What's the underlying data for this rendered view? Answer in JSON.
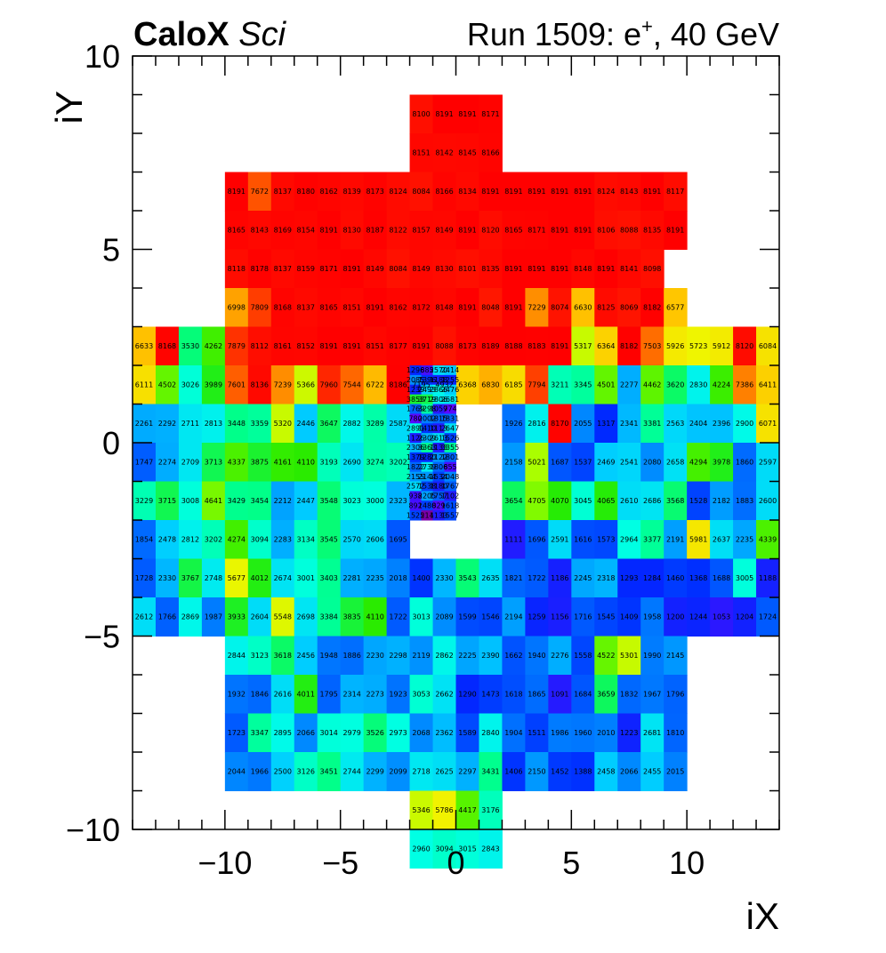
{
  "header": {
    "brand": "CaloX",
    "brand_sub": "Sci",
    "run_prefix": "Run 1509: e",
    "run_sup": "+",
    "run_suffix": ", 40 GeV"
  },
  "chart_data": {
    "type": "heatmap",
    "xlabel": "iX",
    "ylabel": "iY",
    "xlim": [
      -14,
      14
    ],
    "ylim": [
      -10,
      10
    ],
    "xticks": [
      -10,
      -5,
      0,
      5,
      10
    ],
    "yticks": [
      -10,
      -5,
      0,
      5,
      10
    ],
    "tick_labels_x": [
      "−10",
      "−5",
      "0",
      "5",
      "10"
    ],
    "tick_labels_y": [
      "−10",
      "−5",
      "0",
      "5",
      "10"
    ],
    "z_max": 8191,
    "rows": [
      {
        "y0": 8,
        "h": 1,
        "x0": -2,
        "w": 1,
        "values": [
          8100,
          8191,
          8191,
          8171
        ]
      },
      {
        "y0": 7,
        "h": 1,
        "x0": -2,
        "w": 1,
        "values": [
          8151,
          8142,
          8145,
          8166
        ]
      },
      {
        "y0": 6,
        "h": 1,
        "x0": -10,
        "w": 1,
        "values": [
          8191,
          7672,
          8137,
          8180,
          8162,
          8139,
          8173,
          8124,
          8084,
          8166,
          8134,
          8191,
          8191,
          8191,
          8191,
          8191,
          8124,
          8143,
          8191,
          8117
        ]
      },
      {
        "y0": 5,
        "h": 1,
        "x0": -10,
        "w": 1,
        "values": [
          8165,
          8143,
          8169,
          8154,
          8191,
          8130,
          8187,
          8122,
          8157,
          8149,
          8191,
          8120,
          8165,
          8171,
          8191,
          8191,
          8106,
          8088,
          8135,
          8191
        ]
      },
      {
        "y0": 4,
        "h": 1,
        "x0": -10,
        "w": 1,
        "values": [
          8118,
          8178,
          8137,
          8159,
          8171,
          8191,
          8149,
          8084,
          8149,
          8130,
          8101,
          8135,
          8191,
          8191,
          8191,
          8148,
          8191,
          8141,
          8098
        ]
      },
      {
        "y0": 3,
        "h": 1,
        "x0": -10,
        "w": 1,
        "values": [
          6998,
          7809,
          8168,
          8137,
          8165,
          8151,
          8191,
          8162,
          8172,
          8148,
          8191,
          8048,
          8191,
          7229,
          8074,
          6630,
          8125,
          8069,
          8182,
          6577
        ]
      },
      {
        "y0": 2,
        "h": 1,
        "x0": -14,
        "w": 1,
        "values": [
          6633,
          8168,
          3530,
          4262,
          7879,
          8112,
          8161,
          8152,
          8191,
          8191,
          8151,
          8177,
          8191,
          8088,
          8173,
          8189,
          8188,
          8183,
          8191,
          5317,
          6364,
          8182,
          7503,
          5926,
          5723,
          5912,
          8120,
          6084
        ]
      },
      {
        "y0": 1,
        "h": 1,
        "x0": -14,
        "w": 1,
        "values": [
          6111,
          4502,
          3026,
          3989,
          7601,
          8136,
          7239,
          5366,
          7960,
          7544,
          6722,
          8186,
          7195,
          4932,
          6368,
          6830,
          6185,
          7794,
          3211,
          3345,
          4501,
          2277,
          4462,
          3620,
          2830,
          4224,
          7386,
          6411
        ]
      },
      {
        "y0": 0,
        "h": 1,
        "x0": -14,
        "w": 1,
        "values": [
          2261,
          2292,
          2711,
          2813,
          3448,
          3359,
          5320,
          2446,
          3647,
          2882,
          3289,
          2587
        ]
      },
      {
        "y0": 0,
        "h": 1,
        "x0": 2,
        "w": 1,
        "values": [
          1926,
          2816,
          8170,
          2055,
          1317,
          2341,
          3381,
          2563,
          2404,
          2396,
          2900,
          6071
        ]
      },
      {
        "y0": -1,
        "h": 1,
        "x0": -14,
        "w": 1,
        "values": [
          1747,
          2274,
          2709,
          3713,
          4337,
          3875,
          4161,
          4110,
          3193,
          2690,
          3274,
          3202
        ]
      },
      {
        "y0": -1,
        "h": 1,
        "x0": 2,
        "w": 1,
        "values": [
          2158,
          5021,
          1687,
          1537,
          2469,
          2541,
          2080,
          2658,
          4294,
          3978,
          1860,
          2597
        ]
      },
      {
        "y0": -2,
        "h": 1,
        "x0": -14,
        "w": 1,
        "values": [
          3229,
          3715,
          3008,
          4641,
          3429,
          3454,
          2212,
          2447,
          3548,
          3023,
          3000,
          2323
        ]
      },
      {
        "y0": -2,
        "h": 1,
        "x0": 2,
        "w": 1,
        "values": [
          3654,
          4705,
          4070,
          3045,
          4065,
          2610,
          2686,
          3568,
          1528,
          2182,
          1883,
          2600
        ]
      },
      {
        "y0": -3,
        "h": 1,
        "x0": -14,
        "w": 1,
        "values": [
          1854,
          2478,
          2812,
          3202,
          4274,
          3094,
          2283,
          3134,
          3545,
          2570,
          2606,
          1695
        ]
      },
      {
        "y0": -3,
        "h": 1,
        "x0": 2,
        "w": 1,
        "values": [
          1111,
          1696,
          2591,
          1616,
          1573,
          2964,
          3377,
          2191,
          5981,
          2637,
          2235,
          4339
        ]
      },
      {
        "y0": -4,
        "h": 1,
        "x0": -14,
        "w": 1,
        "values": [
          1728,
          2330,
          3767,
          2748,
          5677,
          4012,
          2674,
          3001,
          3403,
          2281,
          2235,
          2018,
          1400,
          2330,
          3543,
          2635,
          1821,
          1722,
          1186,
          2245,
          2318,
          1293,
          1284,
          1460,
          1368,
          1688,
          3005,
          1188
        ]
      },
      {
        "y0": -5,
        "h": 1,
        "x0": -14,
        "w": 1,
        "values": [
          2612,
          1766,
          2869,
          1987,
          3933,
          2604,
          5548,
          2698,
          3384,
          3835,
          4110,
          1722,
          3013,
          2089,
          1599,
          1546,
          2194,
          1259,
          1156,
          1716,
          1545,
          1409,
          1958,
          1200,
          1244,
          1053,
          1204,
          1724
        ]
      },
      {
        "y0": -6,
        "h": 1,
        "x0": -10,
        "w": 1,
        "values": [
          2844,
          3123,
          3618,
          2456,
          1948,
          1886,
          2230,
          2298,
          2119,
          2862,
          2225,
          2390,
          1662,
          1940,
          2276,
          1558,
          4522,
          5301,
          1990,
          2145
        ]
      },
      {
        "y0": -7,
        "h": 1,
        "x0": -10,
        "w": 1,
        "values": [
          1932,
          1846,
          2616,
          4011,
          1795,
          2314,
          2273,
          1923,
          3053,
          2662,
          1290,
          1473,
          1618,
          1865,
          1091,
          1684,
          3659,
          1832,
          1967,
          1796
        ]
      },
      {
        "y0": -8,
        "h": 1,
        "x0": -10,
        "w": 1,
        "values": [
          1723,
          3347,
          2895,
          2066,
          3014,
          2979,
          3526,
          2973,
          2068,
          2362,
          1589,
          2840,
          1904,
          1511,
          1986,
          1960,
          2010,
          1223,
          2681,
          1810
        ]
      },
      {
        "y0": -9,
        "h": 1,
        "x0": -10,
        "w": 1,
        "values": [
          2044,
          1966,
          2500,
          3126,
          3451,
          2744,
          2299,
          2099,
          2718,
          2625,
          2297,
          3431,
          1406,
          2150,
          1452,
          1388,
          2458,
          2066,
          2455,
          2015
        ]
      },
      {
        "y0": -10,
        "h": 1,
        "x0": -2,
        "w": 1,
        "values": [
          5346,
          5786,
          4417,
          3176
        ]
      },
      {
        "y0": -11,
        "h": 1,
        "x0": -2,
        "w": 1,
        "values": [
          2960,
          3094,
          3015,
          2843
        ]
      },
      {
        "y0": 1.75,
        "h": 0.25,
        "x0": -2,
        "w": 0.5,
        "values": [
          1296,
          885,
          2570,
          2414
        ]
      },
      {
        "y0": 1.5,
        "h": 0.25,
        "x0": -2,
        "w": 0.5,
        "values": [
          2085,
          1396,
          1188,
          1255
        ]
      },
      {
        "y0": 1.25,
        "h": 0.25,
        "x0": -2,
        "w": 0.5,
        "values": [
          1239,
          2493,
          2866,
          2476
        ]
      },
      {
        "y0": 1.0,
        "h": 0.25,
        "x0": -2,
        "w": 0.5,
        "values": [
          3853,
          3719,
          2806,
          2681
        ]
      },
      {
        "y0": 0.75,
        "h": 0.25,
        "x0": -2,
        "w": 0.5,
        "values": [
          1769,
          3298,
          1059,
          774
        ]
      },
      {
        "y0": 0.5,
        "h": 0.25,
        "x0": -2,
        "w": 0.5,
        "values": [
          780,
          2002,
          1815,
          1831
        ]
      },
      {
        "y0": 0.25,
        "h": 0.25,
        "x0": -2,
        "w": 0.5,
        "values": [
          2891,
          1410,
          1113,
          2647
        ]
      },
      {
        "y0": 0.0,
        "h": 0.25,
        "x0": -2,
        "w": 0.5,
        "values": [
          1126,
          2309,
          2613,
          1526
        ]
      },
      {
        "y0": -0.25,
        "h": 0.25,
        "x0": -2,
        "w": 0.5,
        "values": [
          2306,
          3363,
          1133,
          3355
        ]
      },
      {
        "y0": -0.5,
        "h": 0.25,
        "x0": -2,
        "w": 0.5,
        "values": [
          1379,
          1280,
          2122,
          1801
        ]
      },
      {
        "y0": -0.75,
        "h": 0.25,
        "x0": -2,
        "w": 0.5,
        "values": [
          1822,
          2739,
          1806,
          855
        ]
      },
      {
        "y0": -1.0,
        "h": 0.25,
        "x0": -2,
        "w": 0.5,
        "values": [
          2155,
          2144,
          1534,
          2048
        ]
      },
      {
        "y0": -1.25,
        "h": 0.25,
        "x0": -2,
        "w": 0.5,
        "values": [
          2572,
          1538,
          1180,
          1767
        ]
      },
      {
        "y0": -1.5,
        "h": 0.25,
        "x0": -2,
        "w": 0.5,
        "values": [
          938,
          2205,
          1757,
          1102
        ]
      },
      {
        "y0": -1.75,
        "h": 0.25,
        "x0": -2,
        "w": 0.5,
        "values": [
          892,
          1480,
          829,
          1618
        ]
      },
      {
        "y0": -2.0,
        "h": 0.25,
        "x0": -2,
        "w": 0.5,
        "values": [
          1525,
          214,
          1133,
          1557
        ]
      }
    ]
  }
}
